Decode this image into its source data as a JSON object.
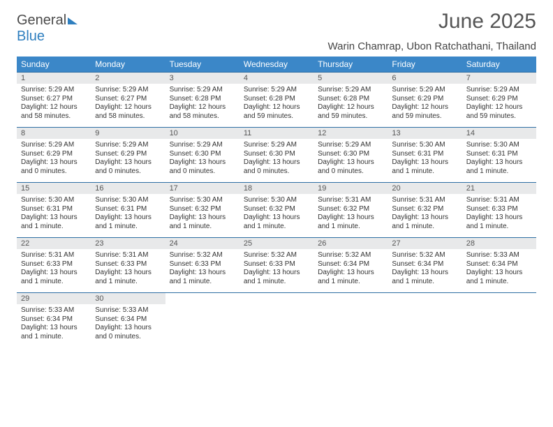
{
  "logo": {
    "text1": "General",
    "text2": "Blue"
  },
  "title": "June 2025",
  "location": "Warin Chamrap, Ubon Ratchathani, Thailand",
  "colors": {
    "header_bg": "#3b87c8",
    "header_text": "#ffffff",
    "grid_border": "#2d6ea3",
    "daynum_bg": "#e8e9ea",
    "text": "#333333",
    "logo_gray": "#4a4a4a",
    "logo_blue": "#2f7fbf"
  },
  "day_headers": [
    "Sunday",
    "Monday",
    "Tuesday",
    "Wednesday",
    "Thursday",
    "Friday",
    "Saturday"
  ],
  "weeks": [
    [
      {
        "n": "1",
        "sr": "5:29 AM",
        "ss": "6:27 PM",
        "dl": "12 hours and 58 minutes."
      },
      {
        "n": "2",
        "sr": "5:29 AM",
        "ss": "6:27 PM",
        "dl": "12 hours and 58 minutes."
      },
      {
        "n": "3",
        "sr": "5:29 AM",
        "ss": "6:28 PM",
        "dl": "12 hours and 58 minutes."
      },
      {
        "n": "4",
        "sr": "5:29 AM",
        "ss": "6:28 PM",
        "dl": "12 hours and 59 minutes."
      },
      {
        "n": "5",
        "sr": "5:29 AM",
        "ss": "6:28 PM",
        "dl": "12 hours and 59 minutes."
      },
      {
        "n": "6",
        "sr": "5:29 AM",
        "ss": "6:29 PM",
        "dl": "12 hours and 59 minutes."
      },
      {
        "n": "7",
        "sr": "5:29 AM",
        "ss": "6:29 PM",
        "dl": "12 hours and 59 minutes."
      }
    ],
    [
      {
        "n": "8",
        "sr": "5:29 AM",
        "ss": "6:29 PM",
        "dl": "13 hours and 0 minutes."
      },
      {
        "n": "9",
        "sr": "5:29 AM",
        "ss": "6:29 PM",
        "dl": "13 hours and 0 minutes."
      },
      {
        "n": "10",
        "sr": "5:29 AM",
        "ss": "6:30 PM",
        "dl": "13 hours and 0 minutes."
      },
      {
        "n": "11",
        "sr": "5:29 AM",
        "ss": "6:30 PM",
        "dl": "13 hours and 0 minutes."
      },
      {
        "n": "12",
        "sr": "5:29 AM",
        "ss": "6:30 PM",
        "dl": "13 hours and 0 minutes."
      },
      {
        "n": "13",
        "sr": "5:30 AM",
        "ss": "6:31 PM",
        "dl": "13 hours and 1 minute."
      },
      {
        "n": "14",
        "sr": "5:30 AM",
        "ss": "6:31 PM",
        "dl": "13 hours and 1 minute."
      }
    ],
    [
      {
        "n": "15",
        "sr": "5:30 AM",
        "ss": "6:31 PM",
        "dl": "13 hours and 1 minute."
      },
      {
        "n": "16",
        "sr": "5:30 AM",
        "ss": "6:31 PM",
        "dl": "13 hours and 1 minute."
      },
      {
        "n": "17",
        "sr": "5:30 AM",
        "ss": "6:32 PM",
        "dl": "13 hours and 1 minute."
      },
      {
        "n": "18",
        "sr": "5:30 AM",
        "ss": "6:32 PM",
        "dl": "13 hours and 1 minute."
      },
      {
        "n": "19",
        "sr": "5:31 AM",
        "ss": "6:32 PM",
        "dl": "13 hours and 1 minute."
      },
      {
        "n": "20",
        "sr": "5:31 AM",
        "ss": "6:32 PM",
        "dl": "13 hours and 1 minute."
      },
      {
        "n": "21",
        "sr": "5:31 AM",
        "ss": "6:33 PM",
        "dl": "13 hours and 1 minute."
      }
    ],
    [
      {
        "n": "22",
        "sr": "5:31 AM",
        "ss": "6:33 PM",
        "dl": "13 hours and 1 minute."
      },
      {
        "n": "23",
        "sr": "5:31 AM",
        "ss": "6:33 PM",
        "dl": "13 hours and 1 minute."
      },
      {
        "n": "24",
        "sr": "5:32 AM",
        "ss": "6:33 PM",
        "dl": "13 hours and 1 minute."
      },
      {
        "n": "25",
        "sr": "5:32 AM",
        "ss": "6:33 PM",
        "dl": "13 hours and 1 minute."
      },
      {
        "n": "26",
        "sr": "5:32 AM",
        "ss": "6:34 PM",
        "dl": "13 hours and 1 minute."
      },
      {
        "n": "27",
        "sr": "5:32 AM",
        "ss": "6:34 PM",
        "dl": "13 hours and 1 minute."
      },
      {
        "n": "28",
        "sr": "5:33 AM",
        "ss": "6:34 PM",
        "dl": "13 hours and 1 minute."
      }
    ],
    [
      {
        "n": "29",
        "sr": "5:33 AM",
        "ss": "6:34 PM",
        "dl": "13 hours and 1 minute."
      },
      {
        "n": "30",
        "sr": "5:33 AM",
        "ss": "6:34 PM",
        "dl": "13 hours and 0 minutes."
      },
      null,
      null,
      null,
      null,
      null
    ]
  ],
  "labels": {
    "sunrise": "Sunrise: ",
    "sunset": "Sunset: ",
    "daylight": "Daylight: "
  }
}
